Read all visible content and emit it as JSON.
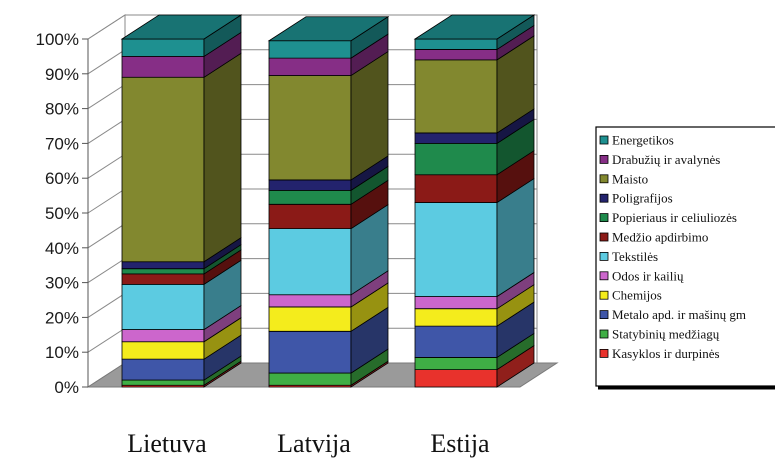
{
  "chart_data": {
    "type": "bar",
    "stacked": true,
    "three_d": true,
    "categories": [
      "Lietuva",
      "Latvija",
      "Estija"
    ],
    "yticks": [
      "0%",
      "10%",
      "20%",
      "30%",
      "40%",
      "50%",
      "60%",
      "70%",
      "80%",
      "90%",
      "100%"
    ],
    "ylim": [
      0,
      100
    ],
    "grid": true,
    "legend_position": "right",
    "series": [
      {
        "name": "Kasyklos ir durpinės",
        "color": "#e8322c",
        "values": [
          0.5,
          0.5,
          5
        ]
      },
      {
        "name": "Statybinių medžiagų",
        "color": "#3fae45",
        "values": [
          1.5,
          3.5,
          3.5
        ]
      },
      {
        "name": "Metalo apd. ir mašinų gm",
        "color": "#3f56a8",
        "values": [
          6,
          12,
          9
        ]
      },
      {
        "name": "Chemijos",
        "color": "#f4ec1c",
        "values": [
          5,
          7,
          5
        ]
      },
      {
        "name": "Odos ir kailių",
        "color": "#cc66cc",
        "values": [
          3.5,
          3.5,
          3.5
        ]
      },
      {
        "name": "Tekstilės",
        "color": "#5ccbe1",
        "values": [
          13,
          19,
          27
        ]
      },
      {
        "name": "Medžio apdirbimo",
        "color": "#8b1a17",
        "values": [
          3,
          7,
          8
        ]
      },
      {
        "name": "Popieriaus ir celiuliozės",
        "color": "#1f8a4c",
        "values": [
          1.5,
          4,
          9
        ]
      },
      {
        "name": "Poligrafijos",
        "color": "#23236d",
        "values": [
          2,
          3,
          3
        ]
      },
      {
        "name": "Maisto",
        "color": "#82882f",
        "values": [
          53,
          30,
          21
        ]
      },
      {
        "name": "Drabužių ir avalynės",
        "color": "#862e86",
        "values": [
          6,
          5,
          3
        ]
      },
      {
        "name": "Energetikos",
        "color": "#1e9090",
        "values": [
          5,
          5,
          3
        ]
      }
    ]
  }
}
